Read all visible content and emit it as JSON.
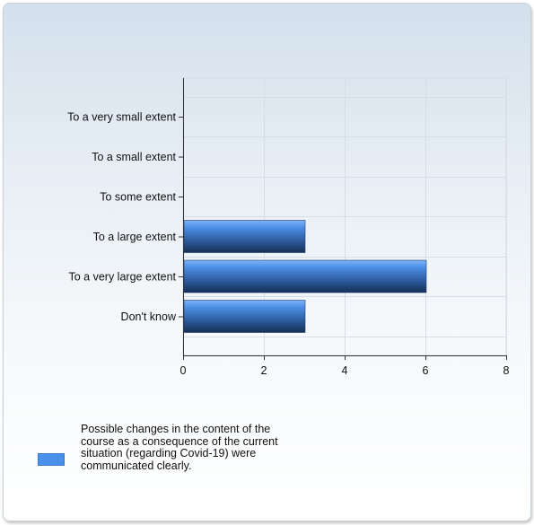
{
  "chart_data": {
    "type": "bar",
    "orientation": "horizontal",
    "categories": [
      "To a very small extent",
      "To a small extent",
      "To some extent",
      "To a large extent",
      "To a very large extent",
      "Don't know"
    ],
    "series": [
      {
        "name": "Possible changes in the content of the course as a consequence of the current situation (regarding Covid-19) were communicated clearly.",
        "values": [
          0,
          0,
          0,
          3,
          6,
          3
        ]
      }
    ],
    "xlim": [
      0,
      8
    ],
    "xticks": [
      0,
      2,
      4,
      6,
      8
    ],
    "grid": true,
    "legend_position": "bottom-left",
    "colors": {
      "bar_top": "#6aa6f5",
      "bar_mid": "#3e7fd6",
      "bar_bottom": "#1c3b6a",
      "legend": "#4a8fea",
      "grid": "#d6dde4"
    }
  }
}
